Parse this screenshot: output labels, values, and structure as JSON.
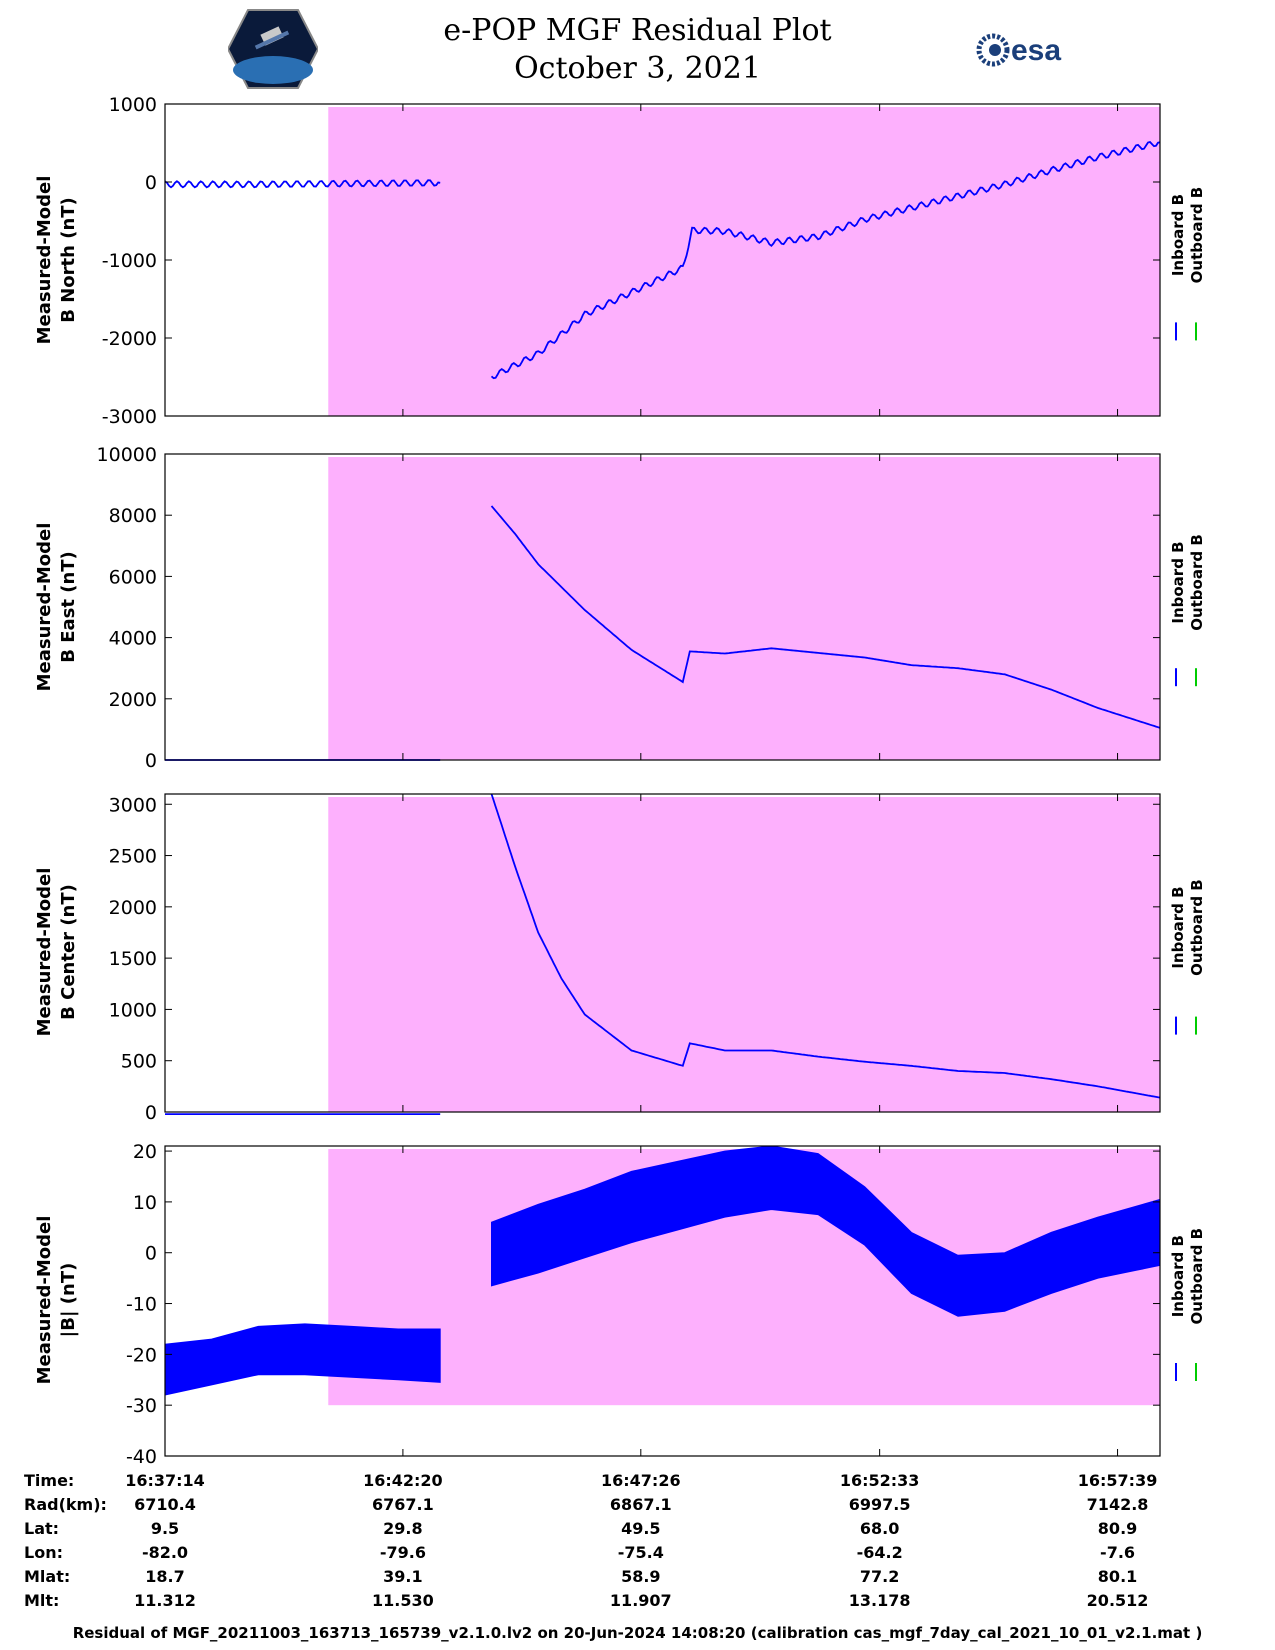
{
  "title": {
    "line1": "e-POP MGF Residual Plot",
    "line2": "October 3, 2021"
  },
  "logos": {
    "left": "cassiope-mission-logo",
    "right_text": "esa"
  },
  "colors": {
    "inboard": "#0000ff",
    "outboard": "#00cc00",
    "shade": "#fdb0fd"
  },
  "chart_data": [
    {
      "type": "line",
      "ylabel": [
        "Measured-Model",
        "B North (nT)"
      ],
      "ylim": [
        -3000,
        1000
      ],
      "yticks": [
        1000,
        0,
        -1000,
        -2000,
        -3000
      ],
      "legend": [
        "Inboard B",
        "Outboard B"
      ],
      "series": [
        {
          "name": "Inboard B",
          "x": [
            0,
            2,
            4,
            5.9,
            6.0,
            7,
            8,
            9,
            11.1,
            11.3,
            12,
            13,
            14,
            15,
            16,
            17,
            18,
            19,
            20,
            21.33
          ],
          "values": [
            -30,
            -30,
            -20,
            -10,
            null,
            -2500,
            -2200,
            -1700,
            -1100,
            -620,
            -630,
            -780,
            -700,
            -480,
            -330,
            -180,
            -30,
            150,
            320,
            510
          ]
        },
        {
          "name": "Outboard B",
          "x": [],
          "values": []
        }
      ]
    },
    {
      "type": "line",
      "ylabel": [
        "Measured-Model",
        "B East (nT)"
      ],
      "ylim": [
        0,
        10000
      ],
      "yticks": [
        10000,
        8000,
        6000,
        4000,
        2000,
        0
      ],
      "legend": [
        "Inboard B",
        "Outboard B"
      ],
      "series": [
        {
          "name": "Inboard B",
          "x": [
            0,
            5.9,
            6.0,
            7,
            7.5,
            8,
            9,
            10,
            11.1,
            11.25,
            12,
            13,
            14,
            15,
            16,
            17,
            18,
            19,
            20,
            21.33
          ],
          "values": [
            0,
            0,
            null,
            8300,
            7400,
            6400,
            4900,
            3600,
            2550,
            3550,
            3480,
            3650,
            3500,
            3350,
            3100,
            3000,
            2800,
            2300,
            1700,
            1050
          ]
        },
        {
          "name": "Outboard B",
          "x": [],
          "values": []
        }
      ]
    },
    {
      "type": "line",
      "ylabel": [
        "Measured-Model",
        "B Center (nT)"
      ],
      "ylim": [
        0,
        3100
      ],
      "yticks": [
        3000,
        2500,
        2000,
        1500,
        1000,
        500,
        0
      ],
      "legend": [
        "Inboard B",
        "Outboard B"
      ],
      "series": [
        {
          "name": "Inboard B",
          "x": [
            0,
            5.9,
            6.0,
            7,
            7.5,
            8,
            8.5,
            9,
            10,
            11.1,
            11.25,
            12,
            13,
            14,
            15,
            16,
            17,
            18,
            19,
            20,
            21.33
          ],
          "values": [
            -20,
            -20,
            null,
            3100,
            2400,
            1750,
            1300,
            950,
            600,
            450,
            670,
            600,
            600,
            540,
            490,
            450,
            400,
            380,
            320,
            250,
            140
          ]
        },
        {
          "name": "Outboard B",
          "x": [],
          "values": []
        }
      ]
    },
    {
      "type": "area",
      "ylabel": [
        "Measured-Model",
        "|B| (nT)"
      ],
      "ylim": [
        -40,
        21
      ],
      "yticks": [
        20,
        10,
        0,
        -10,
        -20,
        -30,
        -40
      ],
      "legend": [
        "Inboard B",
        "Outboard B"
      ],
      "series": [
        {
          "name": "Inboard B upper",
          "x": [
            0,
            1,
            2,
            3,
            4,
            5,
            5.9,
            6.0,
            7,
            8,
            9,
            10,
            11,
            12,
            13,
            14,
            15,
            16,
            17,
            18,
            19,
            20,
            21.33
          ],
          "values": [
            -18,
            -17,
            -14.5,
            -14,
            -14.5,
            -15,
            -15,
            null,
            6,
            9.5,
            12.5,
            16,
            18,
            20,
            21,
            19.5,
            13,
            4,
            -0.5,
            0,
            4,
            7,
            10.5
          ]
        },
        {
          "name": "Inboard B lower",
          "x": [
            0,
            1,
            2,
            3,
            4,
            5,
            5.9,
            6.0,
            7,
            8,
            9,
            10,
            11,
            12,
            13,
            14,
            15,
            16,
            17,
            18,
            19,
            20,
            21.33
          ],
          "values": [
            -28,
            -26,
            -24,
            -24,
            -24.5,
            -25,
            -25.5,
            null,
            -6.5,
            -4,
            -1,
            2,
            4.5,
            7,
            8.5,
            7.5,
            1.5,
            -8,
            -12.5,
            -11.5,
            -8,
            -5,
            -2.5
          ]
        },
        {
          "name": "Outboard B",
          "x": [],
          "values": []
        }
      ]
    }
  ],
  "shade_x_range": [
    3.5,
    21.33
  ],
  "x_ticks": [
    0,
    5.1,
    10.2,
    15.32,
    20.42
  ],
  "table": {
    "row_labels": [
      "Time:",
      "Rad(km):",
      "Lat:",
      "Lon:",
      "Mlat:",
      "Mlt:"
    ],
    "columns": [
      [
        "16:37:14",
        "6710.4",
        "9.5",
        "-82.0",
        "18.7",
        "11.312"
      ],
      [
        "16:42:20",
        "6767.1",
        "29.8",
        "-79.6",
        "39.1",
        "11.530"
      ],
      [
        "16:47:26",
        "6867.1",
        "49.5",
        "-75.4",
        "58.9",
        "11.907"
      ],
      [
        "16:52:33",
        "6997.5",
        "68.0",
        "-64.2",
        "77.2",
        "13.178"
      ],
      [
        "16:57:39",
        "7142.8",
        "80.9",
        "-7.6",
        "80.1",
        "20.512"
      ]
    ]
  },
  "footer": "Residual of MGF_20211003_163713_165739_v2.1.0.lv2 on 20-Jun-2024 14:08:20 (calibration cas_mgf_7day_cal_2021_10_01_v2.1.mat )"
}
